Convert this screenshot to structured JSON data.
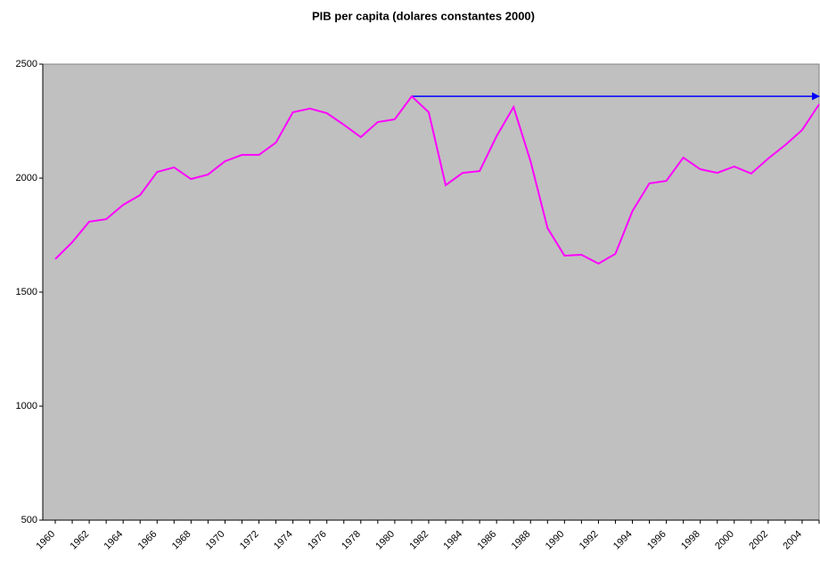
{
  "chart_data": {
    "type": "line",
    "title": "PIB per capita (dolares constantes 2000)",
    "categories": [
      "1960",
      null,
      "1962",
      null,
      "1964",
      null,
      "1966",
      null,
      "1968",
      null,
      "1970",
      null,
      "1972",
      null,
      "1974",
      null,
      "1976",
      null,
      "1978",
      null,
      "1980",
      null,
      "1982",
      null,
      "1984",
      null,
      "1986",
      null,
      "1988",
      null,
      "1990",
      null,
      "1992",
      null,
      "1994",
      null,
      "1996",
      null,
      "1998",
      null,
      "2000",
      null,
      "2002",
      null,
      "2004",
      null
    ],
    "series": [
      {
        "name": "PIB per capita",
        "color": "#ff00ff",
        "values": [
          1645,
          1719,
          1809,
          1820,
          1883,
          1926,
          2027,
          2047,
          1996,
          2016,
          2074,
          2102,
          2102,
          2156,
          2289,
          2305,
          2285,
          2234,
          2180,
          2246,
          2258,
          2359,
          2289,
          1969,
          2023,
          2031,
          2184,
          2312,
          2074,
          1781,
          1660,
          1664,
          1625,
          1668,
          1855,
          1977,
          1988,
          2090,
          2039,
          2023,
          2051,
          2020,
          2086,
          2145,
          2211,
          2324
        ]
      }
    ],
    "reference_line": {
      "value": 2359,
      "color": "#0000ff"
    },
    "ylim": [
      500,
      2500
    ],
    "yticks": [
      500,
      1000,
      1500,
      2000,
      2500
    ],
    "plot_background": "#c0c0c0",
    "grid": false
  }
}
